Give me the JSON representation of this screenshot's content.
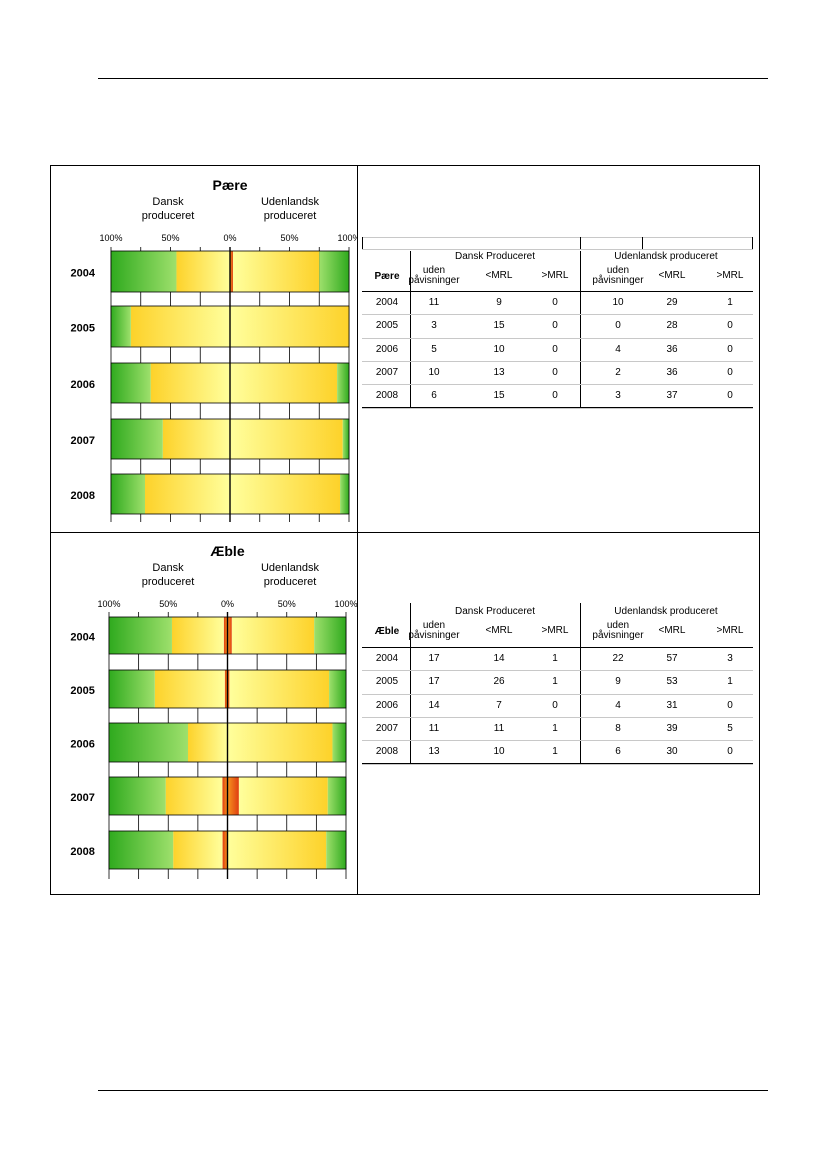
{
  "colors": {
    "green_dark": "#2faa1e",
    "green_light": "#9ee06c",
    "yellow_dark": "#fdd22a",
    "yellow_light": "#ffff9c",
    "red": "#e03c10",
    "orange": "#f5961e"
  },
  "chart_data": [
    {
      "type": "bar",
      "title": "Pære",
      "left_label": [
        "Dansk",
        "produceret"
      ],
      "right_label": [
        "Udenlandsk",
        "produceret"
      ],
      "ticks": [
        "100%",
        "50%",
        "0%",
        "50%",
        "100%"
      ],
      "categories": [
        "2004",
        "2005",
        "2006",
        "2007",
        "2008"
      ],
      "series_keys": [
        "uden påvisninger",
        "<MRL",
        ">MRL"
      ],
      "dansk": [
        [
          11,
          9,
          0
        ],
        [
          3,
          15,
          0
        ],
        [
          5,
          10,
          0
        ],
        [
          10,
          13,
          0
        ],
        [
          6,
          15,
          0
        ]
      ],
      "udenlandsk": [
        [
          10,
          29,
          1
        ],
        [
          0,
          28,
          0
        ],
        [
          4,
          36,
          0
        ],
        [
          2,
          36,
          0
        ],
        [
          3,
          37,
          0
        ]
      ]
    },
    {
      "type": "bar",
      "title": "Æble",
      "left_label": [
        "Dansk",
        "produceret"
      ],
      "right_label": [
        "Udenlandsk",
        "produceret"
      ],
      "ticks": [
        "100%",
        "50%",
        "0%",
        "50%",
        "100%"
      ],
      "categories": [
        "2004",
        "2005",
        "2006",
        "2007",
        "2008"
      ],
      "series_keys": [
        "uden påvisninger",
        "<MRL",
        ">MRL"
      ],
      "dansk": [
        [
          17,
          14,
          1
        ],
        [
          17,
          26,
          1
        ],
        [
          14,
          7,
          0
        ],
        [
          11,
          11,
          1
        ],
        [
          13,
          10,
          1
        ]
      ],
      "udenlandsk": [
        [
          22,
          57,
          3
        ],
        [
          9,
          53,
          1
        ],
        [
          4,
          31,
          0
        ],
        [
          8,
          39,
          5
        ],
        [
          6,
          30,
          0
        ]
      ]
    }
  ],
  "tables": [
    {
      "corner": "Pære",
      "group_left": "Dansk Produceret",
      "group_right": "Udenlandsk produceret",
      "cols": [
        "uden påvisninger",
        "<MRL",
        ">MRL"
      ],
      "rows": [
        [
          "2004",
          "11",
          "9",
          "0",
          "10",
          "29",
          "1"
        ],
        [
          "2005",
          "3",
          "15",
          "0",
          "0",
          "28",
          "0"
        ],
        [
          "2006",
          "5",
          "10",
          "0",
          "4",
          "36",
          "0"
        ],
        [
          "2007",
          "10",
          "13",
          "0",
          "2",
          "36",
          "0"
        ],
        [
          "2008",
          "6",
          "15",
          "0",
          "3",
          "37",
          "0"
        ]
      ]
    },
    {
      "corner": "Æble",
      "group_left": "Dansk Produceret",
      "group_right": "Udenlandsk produceret",
      "cols": [
        "uden påvisninger",
        "<MRL",
        ">MRL"
      ],
      "rows": [
        [
          "2004",
          "17",
          "14",
          "1",
          "22",
          "57",
          "3"
        ],
        [
          "2005",
          "17",
          "26",
          "1",
          "9",
          "53",
          "1"
        ],
        [
          "2006",
          "14",
          "7",
          "0",
          "4",
          "31",
          "0"
        ],
        [
          "2007",
          "11",
          "11",
          "1",
          "8",
          "39",
          "5"
        ],
        [
          "2008",
          "13",
          "10",
          "1",
          "6",
          "30",
          "0"
        ]
      ]
    }
  ]
}
